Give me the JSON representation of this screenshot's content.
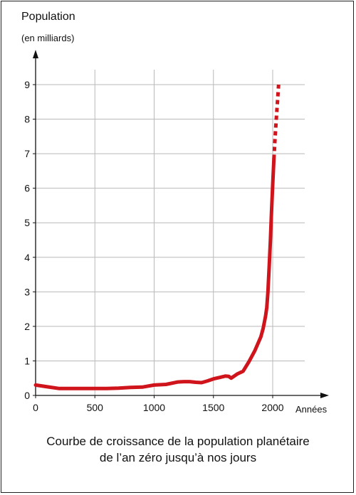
{
  "chart_data": {
    "type": "line",
    "ylabel": "Population",
    "ylabel_sub": "(en milliards)",
    "xlabel": "Années",
    "caption_line1": "Courbe de croissance de la population planétaire",
    "caption_line2": "de l’an zéro jusqu’à nos jours",
    "xlim": [
      0,
      2400
    ],
    "ylim": [
      0,
      9.6
    ],
    "x_ticks": [
      0,
      500,
      1000,
      1500,
      2000
    ],
    "x_tick_labels": [
      "0",
      "500",
      "1000",
      "1500",
      "2000"
    ],
    "y_ticks": [
      0,
      1,
      2,
      3,
      4,
      5,
      6,
      7,
      8,
      9
    ],
    "y_tick_labels": [
      "0",
      "1",
      "2",
      "3",
      "4",
      "5",
      "6",
      "7",
      "8",
      "9"
    ],
    "grid": true,
    "line_color": "#d0141c",
    "series": [
      {
        "style": "solid",
        "x": [
          0,
          100,
          200,
          300,
          400,
          500,
          600,
          700,
          800,
          900,
          1000,
          1100,
          1200,
          1250,
          1300,
          1350,
          1400,
          1450,
          1500,
          1550,
          1600,
          1630,
          1650,
          1700,
          1750,
          1800,
          1850,
          1900,
          1920,
          1940,
          1950,
          1960,
          1970,
          1980,
          1990,
          2000,
          2010
        ],
        "y": [
          0.3,
          0.25,
          0.2,
          0.2,
          0.2,
          0.2,
          0.2,
          0.21,
          0.23,
          0.24,
          0.3,
          0.32,
          0.39,
          0.4,
          0.4,
          0.38,
          0.37,
          0.42,
          0.48,
          0.52,
          0.56,
          0.55,
          0.5,
          0.62,
          0.7,
          0.98,
          1.3,
          1.7,
          1.95,
          2.3,
          2.55,
          3.0,
          3.7,
          4.45,
          5.3,
          6.1,
          6.85
        ]
      },
      {
        "style": "dashed",
        "x": [
          2010,
          2020,
          2030,
          2040,
          2050
        ],
        "y": [
          6.85,
          7.45,
          8.0,
          8.5,
          9.0
        ]
      }
    ]
  }
}
